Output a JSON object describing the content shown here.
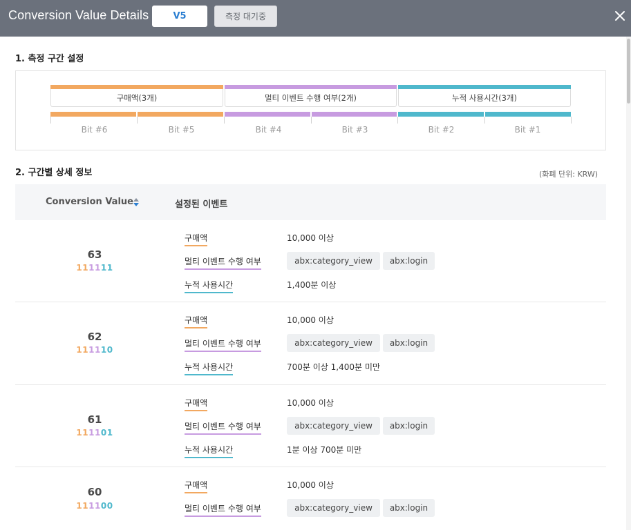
{
  "header": {
    "title": "Conversion Value Details",
    "version": "V5",
    "status": "측정 대기중"
  },
  "section1": {
    "title": "1. 측정 구간 설정",
    "groups": [
      {
        "label": "구매액(3개)",
        "color": "#f2a860"
      },
      {
        "label": "멀티 이벤트 수행 여부(2개)",
        "color": "#c79be0"
      },
      {
        "label": "누적 사용시간(3개)",
        "color": "#4fb8cc"
      }
    ],
    "bits": [
      "Bit #6",
      "Bit #5",
      "Bit #4",
      "Bit #3",
      "Bit #2",
      "Bit #1"
    ]
  },
  "section2": {
    "title": "2. 구간별 상세 정보",
    "unit_note": "(화폐 단위: KRW)",
    "col_cv": "Conversion Value",
    "col_events": "설정된 이벤트"
  },
  "rows": [
    {
      "value": "63",
      "bits": [
        "1",
        "1",
        "1",
        "1",
        "1",
        "1"
      ],
      "purchase_label": "구매액",
      "purchase_value": "10,000 이상",
      "multi_label": "멀티 이벤트 수행 여부",
      "chip1": "abx:category_view",
      "chip2": "abx:login",
      "time_label": "누적 사용시간",
      "time_value": "1,400분 이상"
    },
    {
      "value": "62",
      "bits": [
        "1",
        "1",
        "1",
        "1",
        "1",
        "0"
      ],
      "purchase_label": "구매액",
      "purchase_value": "10,000 이상",
      "multi_label": "멀티 이벤트 수행 여부",
      "chip1": "abx:category_view",
      "chip2": "abx:login",
      "time_label": "누적 사용시간",
      "time_value": "700분 이상 1,400분 미만"
    },
    {
      "value": "61",
      "bits": [
        "1",
        "1",
        "1",
        "1",
        "0",
        "1"
      ],
      "purchase_label": "구매액",
      "purchase_value": "10,000 이상",
      "multi_label": "멀티 이벤트 수행 여부",
      "chip1": "abx:category_view",
      "chip2": "abx:login",
      "time_label": "누적 사용시간",
      "time_value": "1분 이상 700분 미만"
    },
    {
      "value": "60",
      "bits": [
        "1",
        "1",
        "1",
        "1",
        "0",
        "0"
      ],
      "purchase_label": "구매액",
      "purchase_value": "10,000 이상",
      "multi_label": "멀티 이벤트 수행 여부",
      "chip1": "abx:category_view",
      "chip2": "abx:login"
    }
  ],
  "colors": {
    "header_bg": "#6b717c",
    "purchase": "#f2a860",
    "multi": "#c79be0",
    "time": "#4fb8cc",
    "version_text": "#2a7ed1"
  }
}
